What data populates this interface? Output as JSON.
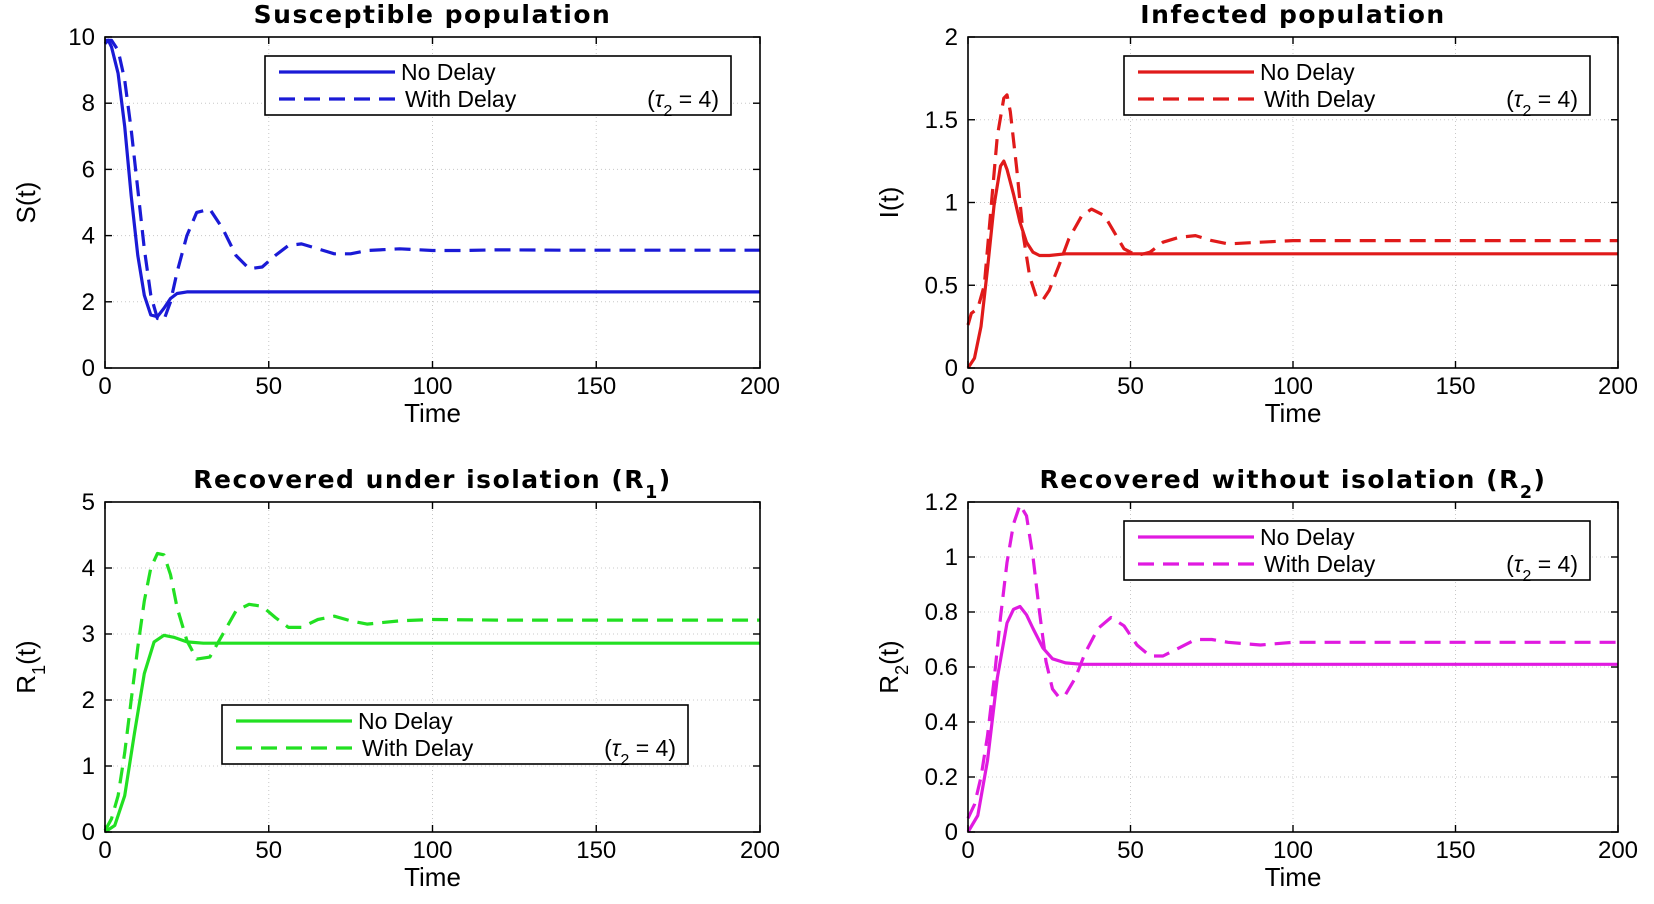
{
  "chart_data": [
    {
      "type": "line",
      "title": "Susceptible population",
      "xlabel": "Time",
      "ylabel": "S(t)",
      "xlim": [
        0,
        200
      ],
      "ylim": [
        0,
        10
      ],
      "xticks": [
        "0",
        "50",
        "100",
        "150",
        "200"
      ],
      "yticks": [
        "0",
        "2",
        "4",
        "6",
        "8",
        "10"
      ],
      "grid": true,
      "legend_position": "top-right",
      "color": "#1a1ad6",
      "series": [
        {
          "name": "No Delay",
          "style": "solid",
          "x": [
            0,
            1,
            2,
            4,
            6,
            8,
            10,
            12,
            14,
            16,
            18,
            20,
            22,
            25,
            30,
            40,
            60,
            100,
            150,
            200
          ],
          "y": [
            9.8,
            9.9,
            9.7,
            8.9,
            7.3,
            5.2,
            3.4,
            2.2,
            1.6,
            1.55,
            1.8,
            2.1,
            2.25,
            2.3,
            2.3,
            2.3,
            2.3,
            2.3,
            2.3,
            2.3
          ]
        },
        {
          "name": "With Delay",
          "style": "dashed",
          "x": [
            0,
            2,
            4,
            6,
            8,
            10,
            12,
            14,
            16,
            18,
            20,
            22,
            25,
            28,
            32,
            36,
            40,
            44,
            48,
            52,
            56,
            60,
            65,
            70,
            75,
            80,
            90,
            100,
            110,
            120,
            140,
            160,
            180,
            200
          ],
          "y": [
            9.9,
            9.9,
            9.6,
            8.7,
            7.2,
            5.4,
            3.6,
            2.2,
            1.5,
            1.45,
            2.0,
            2.9,
            4.0,
            4.7,
            4.8,
            4.2,
            3.4,
            3.0,
            3.05,
            3.4,
            3.7,
            3.75,
            3.6,
            3.45,
            3.45,
            3.55,
            3.6,
            3.55,
            3.55,
            3.57,
            3.56,
            3.56,
            3.56,
            3.56
          ]
        }
      ]
    },
    {
      "type": "line",
      "title": "Infected population",
      "xlabel": "Time",
      "ylabel": "I(t)",
      "xlim": [
        0,
        200
      ],
      "ylim": [
        0,
        2
      ],
      "xticks": [
        "0",
        "50",
        "100",
        "150",
        "200"
      ],
      "yticks": [
        "0",
        "0.5",
        "1",
        "1.5",
        "2"
      ],
      "grid": true,
      "legend_position": "top-right",
      "color": "#e01a1a",
      "series": [
        {
          "name": "No Delay",
          "style": "solid",
          "x": [
            0,
            2,
            4,
            6,
            8,
            10,
            11,
            12,
            14,
            16,
            18,
            20,
            22,
            25,
            30,
            40,
            60,
            100,
            150,
            200
          ],
          "y": [
            0.0,
            0.06,
            0.25,
            0.6,
            0.98,
            1.22,
            1.25,
            1.2,
            1.05,
            0.88,
            0.76,
            0.7,
            0.68,
            0.68,
            0.69,
            0.69,
            0.69,
            0.69,
            0.69,
            0.69
          ]
        },
        {
          "name": "With Delay",
          "style": "dashed",
          "x": [
            0,
            1,
            3,
            5,
            7,
            9,
            11,
            12,
            13,
            15,
            17,
            19,
            21,
            23,
            25,
            28,
            31,
            35,
            38,
            42,
            45,
            48,
            52,
            56,
            60,
            65,
            70,
            75,
            80,
            90,
            100,
            120,
            140,
            160,
            200
          ],
          "y": [
            0.26,
            0.33,
            0.36,
            0.5,
            0.95,
            1.4,
            1.63,
            1.65,
            1.55,
            1.2,
            0.8,
            0.55,
            0.43,
            0.41,
            0.47,
            0.62,
            0.78,
            0.92,
            0.96,
            0.92,
            0.82,
            0.72,
            0.68,
            0.7,
            0.76,
            0.79,
            0.8,
            0.77,
            0.75,
            0.76,
            0.77,
            0.77,
            0.77,
            0.77,
            0.77
          ]
        }
      ]
    },
    {
      "type": "line",
      "title": "Recovered under isolation (R₁)",
      "xlabel": "Time",
      "ylabel": "R₁(t)",
      "xlim": [
        0,
        200
      ],
      "ylim": [
        0,
        5
      ],
      "xticks": [
        "0",
        "50",
        "100",
        "150",
        "200"
      ],
      "yticks": [
        "0",
        "1",
        "2",
        "3",
        "4",
        "5"
      ],
      "grid": true,
      "legend_position": "bottom-center",
      "color": "#22e022",
      "series": [
        {
          "name": "No Delay",
          "style": "solid",
          "x": [
            0,
            3,
            6,
            9,
            12,
            15,
            18,
            21,
            25,
            30,
            40,
            60,
            100,
            150,
            200
          ],
          "y": [
            0.0,
            0.1,
            0.55,
            1.5,
            2.4,
            2.88,
            2.98,
            2.95,
            2.88,
            2.86,
            2.86,
            2.86,
            2.86,
            2.86,
            2.86
          ],
          "_": ""
        },
        {
          "name": "With Delay",
          "style": "dashed",
          "x": [
            0,
            2,
            4,
            6,
            8,
            10,
            12,
            14,
            16,
            18,
            20,
            22,
            25,
            28,
            32,
            36,
            40,
            44,
            48,
            52,
            56,
            60,
            65,
            70,
            75,
            80,
            90,
            100,
            120,
            150,
            200
          ],
          "y": [
            0.02,
            0.2,
            0.55,
            1.2,
            2.0,
            2.8,
            3.5,
            4.0,
            4.22,
            4.2,
            3.9,
            3.4,
            2.9,
            2.62,
            2.65,
            3.0,
            3.35,
            3.45,
            3.42,
            3.25,
            3.1,
            3.1,
            3.22,
            3.27,
            3.2,
            3.15,
            3.2,
            3.22,
            3.21,
            3.21,
            3.21
          ]
        }
      ]
    },
    {
      "type": "line",
      "title": "Recovered without isolation (R₂)",
      "xlabel": "Time",
      "ylabel": "R₂(t)",
      "xlim": [
        0,
        200
      ],
      "ylim": [
        0,
        1.2
      ],
      "xticks": [
        "0",
        "50",
        "100",
        "150",
        "200"
      ],
      "yticks": [
        "0",
        "0.2",
        "0.4",
        "0.6",
        "0.8",
        "1",
        "1.2"
      ],
      "grid": true,
      "legend_position": "top-right",
      "color": "#e01ae0",
      "series": [
        {
          "name": "No Delay",
          "style": "solid",
          "x": [
            0,
            3,
            6,
            9,
            12,
            14,
            16,
            18,
            20,
            23,
            26,
            30,
            35,
            40,
            60,
            100,
            150,
            200
          ],
          "y": [
            0.0,
            0.06,
            0.26,
            0.56,
            0.76,
            0.81,
            0.82,
            0.79,
            0.74,
            0.67,
            0.63,
            0.615,
            0.61,
            0.61,
            0.61,
            0.61,
            0.61,
            0.61
          ]
        },
        {
          "name": "With Delay",
          "style": "dashed",
          "x": [
            0,
            2,
            4,
            6,
            8,
            10,
            12,
            14,
            16,
            18,
            20,
            22,
            24,
            26,
            28,
            30,
            33,
            36,
            40,
            44,
            48,
            52,
            56,
            60,
            65,
            70,
            75,
            80,
            90,
            100,
            120,
            150,
            200
          ],
          "y": [
            0.05,
            0.1,
            0.2,
            0.35,
            0.55,
            0.78,
            0.98,
            1.12,
            1.19,
            1.15,
            1.0,
            0.8,
            0.62,
            0.52,
            0.49,
            0.5,
            0.56,
            0.65,
            0.74,
            0.78,
            0.75,
            0.68,
            0.64,
            0.64,
            0.67,
            0.7,
            0.7,
            0.69,
            0.68,
            0.69,
            0.69,
            0.69,
            0.69
          ]
        }
      ]
    }
  ],
  "legend_delay_label": "(τ₂  =  4)"
}
